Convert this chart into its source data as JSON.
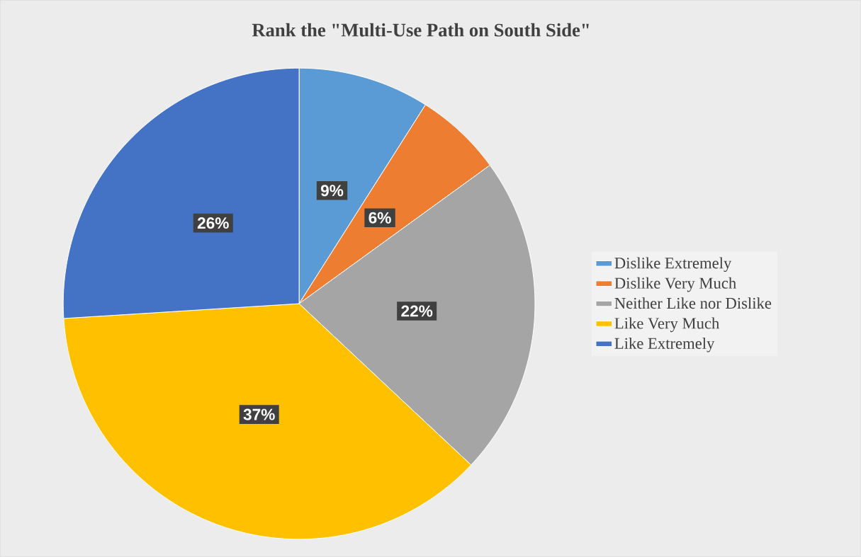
{
  "chart_data": {
    "type": "pie",
    "title": "Rank the \"Multi-Use Path on South Side\"",
    "categories": [
      "Dislike Extremely",
      "Dislike Very Much",
      "Neither Like nor Dislike",
      "Like Very Much",
      "Like Extremely"
    ],
    "values": [
      9,
      6,
      22,
      37,
      26
    ],
    "value_labels": [
      "9%",
      "6%",
      "22%",
      "37%",
      "26%"
    ],
    "colors": [
      "#5b9bd5",
      "#ed7d31",
      "#a5a5a5",
      "#ffc000",
      "#4472c4"
    ],
    "legend": "right"
  }
}
